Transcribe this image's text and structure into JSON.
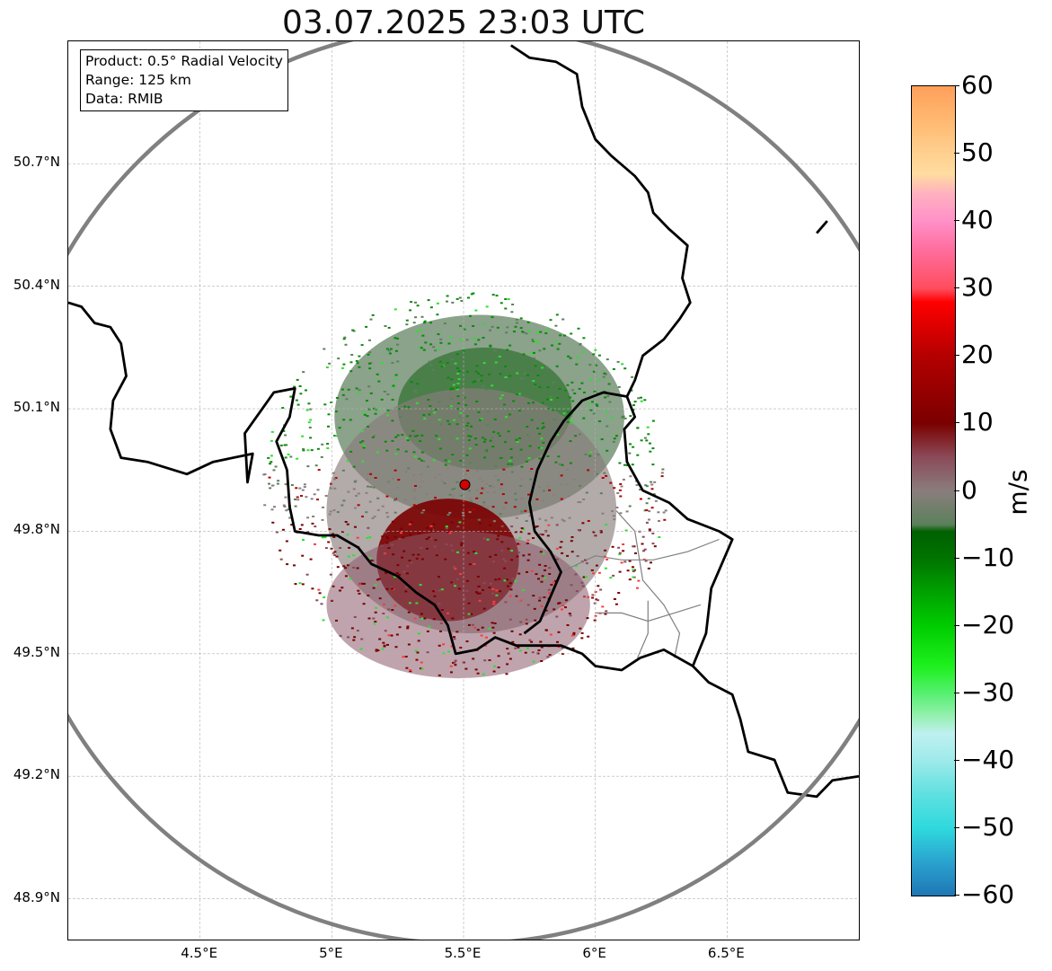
{
  "title": "03.07.2025 23:03 UTC",
  "info_box": {
    "product": "Product: 0.5° Radial Velocity",
    "range": "Range: 125 km",
    "data": "Data: RMIB"
  },
  "map": {
    "lon_range": [
      4.0,
      7.0
    ],
    "lat_range": [
      48.8,
      51.0
    ],
    "radar_site": {
      "lon": 5.505,
      "lat": 49.914
    },
    "range_km": 125,
    "lon_ticks": [
      {
        "value": 4.5,
        "label": "4.5°E"
      },
      {
        "value": 5.0,
        "label": "5°E"
      },
      {
        "value": 5.5,
        "label": "5.5°E"
      },
      {
        "value": 6.0,
        "label": "6°E"
      },
      {
        "value": 6.5,
        "label": "6.5°E"
      }
    ],
    "lat_ticks": [
      {
        "value": 50.7,
        "label": "50.7°N"
      },
      {
        "value": 50.4,
        "label": "50.4°N"
      },
      {
        "value": 50.1,
        "label": "50.1°N"
      },
      {
        "value": 49.8,
        "label": "49.8°N"
      },
      {
        "value": 49.5,
        "label": "49.5°N"
      },
      {
        "value": 49.2,
        "label": "49.2°N"
      },
      {
        "value": 48.9,
        "label": "48.9°N"
      }
    ],
    "grid": true,
    "colors": {
      "range_ring": "#808080",
      "border": "#000000",
      "province_border": "#808080",
      "site_marker": "#d40000",
      "grid": "#b0b0b0"
    },
    "borders": [
      [
        [
          4.0,
          50.36
        ],
        [
          4.05,
          50.35
        ],
        [
          4.1,
          50.31
        ],
        [
          4.16,
          50.3
        ],
        [
          4.2,
          50.26
        ],
        [
          4.22,
          50.18
        ],
        [
          4.17,
          50.12
        ],
        [
          4.16,
          50.05
        ],
        [
          4.2,
          49.98
        ],
        [
          4.3,
          49.97
        ],
        [
          4.45,
          49.94
        ],
        [
          4.55,
          49.97
        ],
        [
          4.7,
          49.99
        ],
        [
          4.68,
          49.92
        ],
        [
          4.67,
          50.04
        ],
        [
          4.78,
          50.14
        ],
        [
          4.86,
          50.15
        ],
        [
          4.84,
          50.08
        ],
        [
          4.79,
          50.02
        ],
        [
          4.83,
          49.95
        ],
        [
          4.84,
          49.86
        ],
        [
          4.86,
          49.8
        ],
        [
          4.95,
          49.79
        ],
        [
          5.02,
          49.79
        ],
        [
          5.1,
          49.76
        ],
        [
          5.15,
          49.72
        ],
        [
          5.25,
          49.69
        ],
        [
          5.32,
          49.65
        ],
        [
          5.39,
          49.62
        ],
        [
          5.44,
          49.57
        ],
        [
          5.47,
          49.5
        ],
        [
          5.55,
          49.51
        ],
        [
          5.62,
          49.54
        ],
        [
          5.7,
          49.52
        ],
        [
          5.77,
          49.52
        ],
        [
          5.87,
          49.52
        ],
        [
          5.95,
          49.5
        ],
        [
          6.0,
          49.47
        ],
        [
          6.1,
          49.46
        ],
        [
          6.17,
          49.49
        ],
        [
          6.26,
          49.51
        ],
        [
          6.37,
          49.47
        ],
        [
          6.43,
          49.43
        ],
        [
          6.52,
          49.4
        ],
        [
          6.55,
          49.34
        ],
        [
          6.58,
          49.26
        ],
        [
          6.68,
          49.24
        ],
        [
          6.73,
          49.16
        ],
        [
          6.84,
          49.15
        ],
        [
          6.9,
          49.19
        ],
        [
          7.0,
          49.2
        ]
      ],
      [
        [
          5.73,
          49.55
        ],
        [
          5.79,
          49.58
        ],
        [
          5.83,
          49.64
        ],
        [
          5.87,
          49.7
        ],
        [
          5.83,
          49.75
        ],
        [
          5.77,
          49.8
        ],
        [
          5.75,
          49.87
        ],
        [
          5.78,
          49.95
        ],
        [
          5.83,
          50.02
        ],
        [
          5.88,
          50.07
        ],
        [
          5.95,
          50.12
        ],
        [
          6.03,
          50.14
        ],
        [
          6.12,
          50.13
        ],
        [
          6.15,
          50.08
        ],
        [
          6.11,
          50.05
        ],
        [
          6.12,
          49.97
        ],
        [
          6.18,
          49.9
        ],
        [
          6.28,
          49.87
        ],
        [
          6.35,
          49.83
        ],
        [
          6.47,
          49.8
        ],
        [
          6.52,
          49.78
        ],
        [
          6.44,
          49.66
        ],
        [
          6.42,
          49.55
        ],
        [
          6.37,
          49.47
        ]
      ],
      [
        [
          6.12,
          50.13
        ],
        [
          6.15,
          50.17
        ],
        [
          6.18,
          50.23
        ],
        [
          6.26,
          50.27
        ],
        [
          6.32,
          50.32
        ],
        [
          6.36,
          50.36
        ],
        [
          6.33,
          50.42
        ],
        [
          6.35,
          50.5
        ],
        [
          6.28,
          50.54
        ],
        [
          6.22,
          50.58
        ],
        [
          6.2,
          50.63
        ],
        [
          6.15,
          50.67
        ],
        [
          6.06,
          50.72
        ],
        [
          6.0,
          50.76
        ],
        [
          5.95,
          50.84
        ],
        [
          5.93,
          50.92
        ],
        [
          5.85,
          50.95
        ],
        [
          5.75,
          50.96
        ],
        [
          5.68,
          50.99
        ]
      ],
      [
        [
          6.88,
          50.56
        ],
        [
          6.84,
          50.53
        ]
      ]
    ],
    "province_borders": [
      [
        [
          5.87,
          49.7
        ],
        [
          6.0,
          49.74
        ],
        [
          6.1,
          49.73
        ],
        [
          6.22,
          49.73
        ],
        [
          6.35,
          49.75
        ],
        [
          6.47,
          49.78
        ]
      ],
      [
        [
          6.08,
          49.85
        ],
        [
          6.15,
          49.8
        ],
        [
          6.18,
          49.68
        ],
        [
          6.26,
          49.62
        ],
        [
          6.32,
          49.55
        ],
        [
          6.3,
          49.49
        ]
      ],
      [
        [
          6.0,
          49.6
        ],
        [
          6.1,
          49.6
        ],
        [
          6.2,
          49.58
        ],
        [
          6.3,
          49.6
        ],
        [
          6.4,
          49.62
        ]
      ],
      [
        [
          6.16,
          49.49
        ],
        [
          6.2,
          49.55
        ],
        [
          6.2,
          49.63
        ]
      ]
    ],
    "echo_regions": [
      {
        "name": "inbound-core-green",
        "lon": 5.58,
        "lat": 50.1,
        "rx_deg": 0.33,
        "ry_deg": 0.15,
        "color": "#007400",
        "opacity": 0.85
      },
      {
        "name": "inbound-ring-green",
        "lon": 5.56,
        "lat": 50.08,
        "rx_deg": 0.55,
        "ry_deg": 0.25,
        "color": "#5a7a5a",
        "opacity": 0.7
      },
      {
        "name": "zero-band-grey",
        "lon": 5.53,
        "lat": 49.85,
        "rx_deg": 0.55,
        "ry_deg": 0.3,
        "color": "#8a7d7d",
        "opacity": 0.65
      },
      {
        "name": "outbound-core-red",
        "lon": 5.44,
        "lat": 49.73,
        "rx_deg": 0.27,
        "ry_deg": 0.15,
        "color": "#7a0000",
        "opacity": 0.9
      },
      {
        "name": "outbound-ring-mauve",
        "lon": 5.48,
        "lat": 49.62,
        "rx_deg": 0.5,
        "ry_deg": 0.18,
        "color": "#8b5a6a",
        "opacity": 0.55
      }
    ]
  },
  "colorbar": {
    "vmin": -60,
    "vmax": 60,
    "unit": "m/s",
    "ticks": [
      {
        "value": 60,
        "label": "60"
      },
      {
        "value": 50,
        "label": "50"
      },
      {
        "value": 40,
        "label": "40"
      },
      {
        "value": 30,
        "label": "30"
      },
      {
        "value": 20,
        "label": "20"
      },
      {
        "value": 10,
        "label": "10"
      },
      {
        "value": 0,
        "label": "0"
      },
      {
        "value": -10,
        "label": "−10"
      },
      {
        "value": -20,
        "label": "−20"
      },
      {
        "value": -30,
        "label": "−30"
      },
      {
        "value": -40,
        "label": "−40"
      },
      {
        "value": -50,
        "label": "−50"
      },
      {
        "value": -60,
        "label": "−60"
      }
    ],
    "stops": [
      {
        "value": -60,
        "color": "#1f77b4"
      },
      {
        "value": -55,
        "color": "#2aa3cf"
      },
      {
        "value": -50,
        "color": "#2ed9de"
      },
      {
        "value": -45,
        "color": "#5fe0e0"
      },
      {
        "value": -40,
        "color": "#9eeaea"
      },
      {
        "value": -36,
        "color": "#bff0f0"
      },
      {
        "value": -33,
        "color": "#8ff0a8"
      },
      {
        "value": -30,
        "color": "#55f070"
      },
      {
        "value": -26,
        "color": "#1ef01e"
      },
      {
        "value": -20,
        "color": "#00cc00"
      },
      {
        "value": -14,
        "color": "#009900"
      },
      {
        "value": -10,
        "color": "#007300"
      },
      {
        "value": -6,
        "color": "#006000"
      },
      {
        "value": -5,
        "color": "#5b805b"
      },
      {
        "value": 0,
        "color": "#8a7d7d"
      },
      {
        "value": 5,
        "color": "#8b4a58"
      },
      {
        "value": 10,
        "color": "#7a0000"
      },
      {
        "value": 20,
        "color": "#b40000"
      },
      {
        "value": 28,
        "color": "#ff0000"
      },
      {
        "value": 30,
        "color": "#ff4d5e"
      },
      {
        "value": 36,
        "color": "#ff6fa0"
      },
      {
        "value": 40,
        "color": "#ff90c8"
      },
      {
        "value": 44,
        "color": "#ffb0c0"
      },
      {
        "value": 47,
        "color": "#ffdca0"
      },
      {
        "value": 50,
        "color": "#ffd090"
      },
      {
        "value": 55,
        "color": "#ffb870"
      },
      {
        "value": 60,
        "color": "#ff9f5a"
      }
    ]
  }
}
